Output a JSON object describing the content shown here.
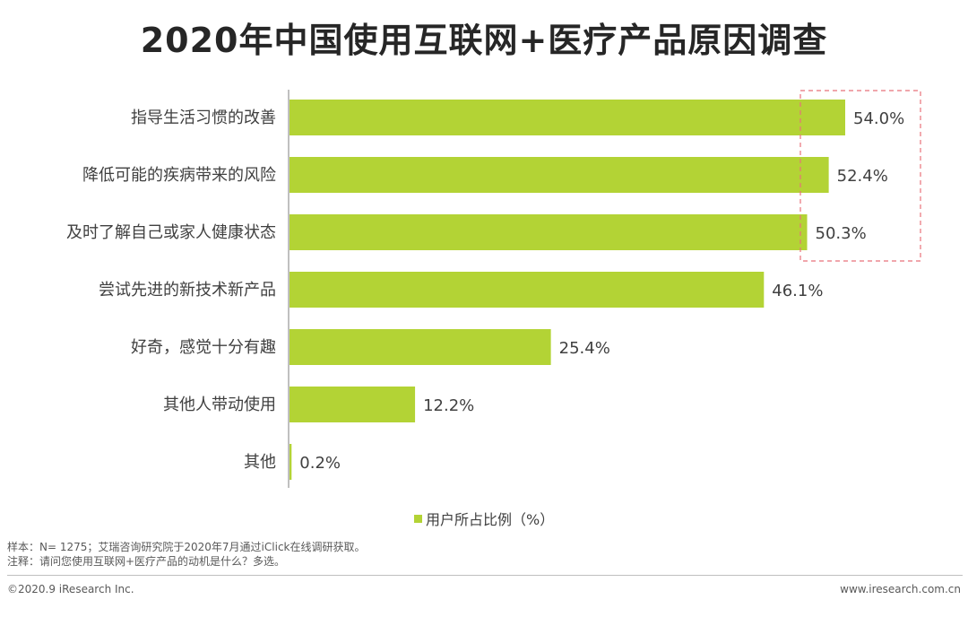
{
  "colors": {
    "bar": "#b3d335",
    "highlight_border": "#e8727a",
    "axis": "#808080"
  },
  "legend": {
    "label": "用户所占比例（%）"
  },
  "notes": {
    "sample": "样本：N= 1275；艾瑞咨询研究院于2020年7月通过iClick在线调研获取。",
    "remark": "注释：请问您使用互联网+医疗产品的动机是什么？多选。"
  },
  "footer": {
    "copyright": "©2020.9 iResearch Inc.",
    "website": "www.iresearch.com.cn"
  },
  "chart_data": {
    "type": "bar",
    "orientation": "horizontal",
    "title": "2020年中国使用互联网+医疗产品原因调查",
    "categories": [
      "指导生活习惯的改善",
      "降低可能的疾病带来的风险",
      "及时了解自己或家人健康状态",
      "尝试先进的新技术新产品",
      "好奇，感觉十分有趣",
      "其他人带动使用",
      "其他"
    ],
    "values": [
      54.0,
      52.4,
      50.3,
      46.1,
      25.4,
      12.2,
      0.2
    ],
    "value_labels": [
      "54.0%",
      "52.4%",
      "50.3%",
      "46.1%",
      "25.4%",
      "12.2%",
      "0.2%"
    ],
    "series_name": "用户所占比例（%）",
    "xlim": [
      0,
      54.0
    ],
    "highlighted_categories": [
      0,
      1,
      2
    ],
    "grid": false,
    "legend_position": "bottom"
  }
}
